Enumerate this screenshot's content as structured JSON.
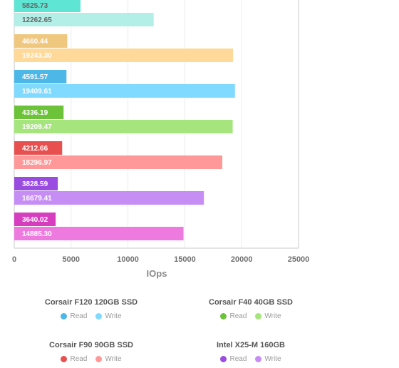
{
  "chart_data": {
    "type": "bar",
    "orientation": "horizontal",
    "xlabel": "IOps",
    "xlim": [
      0,
      25000
    ],
    "xticks": [
      "0",
      "5000",
      "10000",
      "15000",
      "20000",
      "25000"
    ],
    "grid": true,
    "legend_position": "bottom",
    "groups": [
      {
        "read": 5825.73,
        "write": 12262.65,
        "read_label": "5825.73",
        "write_label": "12262.65",
        "read_color": "#5fe5d3",
        "write_color": "#b3efe7"
      },
      {
        "read": 4660.44,
        "write": 19243.3,
        "read_label": "4660.44",
        "write_label": "19243.30",
        "read_color": "#f0c77f",
        "write_color": "#ffd999"
      },
      {
        "read": 4591.57,
        "write": 19409.61,
        "read_label": "4591.57",
        "write_label": "19409.61",
        "read_color": "#4db8e8",
        "write_color": "#80d9ff"
      },
      {
        "read": 4336.19,
        "write": 19209.47,
        "read_label": "4336.19",
        "write_label": "19209.47",
        "read_color": "#6cc339",
        "write_color": "#a6e57d"
      },
      {
        "read": 4212.66,
        "write": 18296.97,
        "read_label": "4212.66",
        "write_label": "18296.97",
        "read_color": "#e85050",
        "write_color": "#ff9999"
      },
      {
        "read": 3828.59,
        "write": 16679.41,
        "read_label": "3828.59",
        "write_label": "16679.41",
        "read_color": "#9a4be0",
        "write_color": "#c68ef5"
      },
      {
        "read": 3640.02,
        "write": 14885.3,
        "read_label": "3640.02",
        "write_label": "14885.30",
        "read_color": "#d63ebf",
        "write_color": "#ee7ae0"
      }
    ]
  },
  "legend": [
    {
      "name": "Corsair F120 120GB SSD",
      "read_label": "Read",
      "write_label": "Write",
      "read_color": "#4db8e8",
      "write_color": "#80d9ff"
    },
    {
      "name": "Corsair F40 40GB SSD",
      "read_label": "Read",
      "write_label": "Write",
      "read_color": "#6cc339",
      "write_color": "#a6e57d"
    },
    {
      "name": "Corsair F90 90GB SSD",
      "read_label": "Read",
      "write_label": "Write",
      "read_color": "#e85050",
      "write_color": "#ff9999"
    },
    {
      "name": "Intel X25-M 160GB",
      "read_label": "Read",
      "write_label": "Write",
      "read_color": "#9a4be0",
      "write_color": "#c68ef5"
    }
  ]
}
